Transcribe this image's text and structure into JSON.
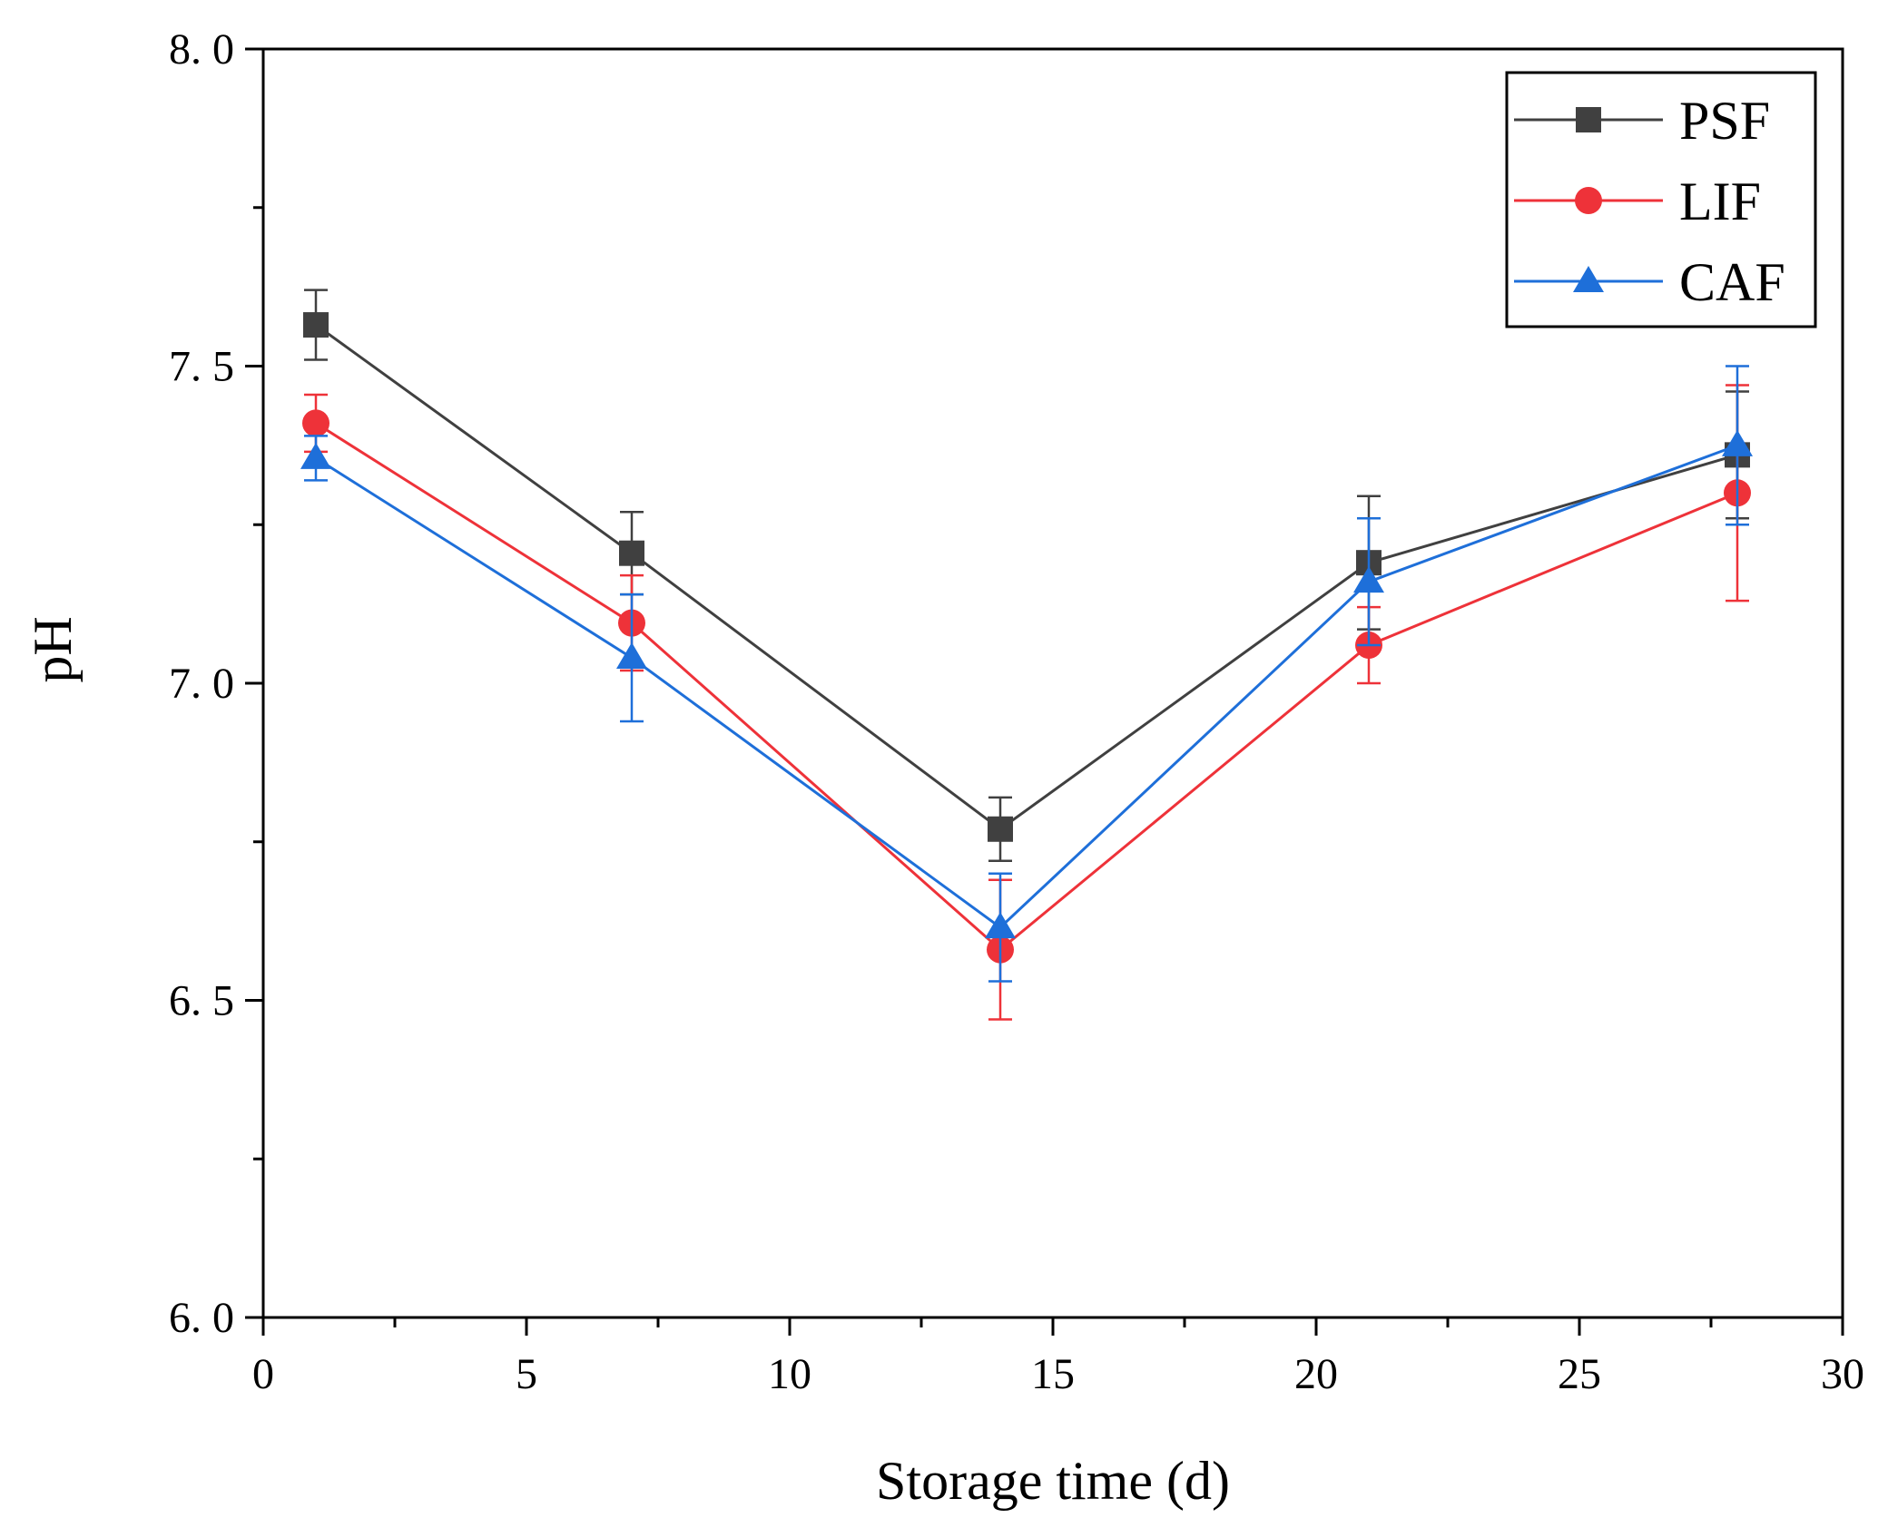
{
  "chart_data": {
    "type": "line",
    "xlabel": "Storage time (d)",
    "ylabel": "pH",
    "xlim": [
      0,
      30
    ],
    "ylim": [
      6.0,
      8.0
    ],
    "x_ticks": [
      0,
      5,
      10,
      15,
      20,
      25,
      30
    ],
    "x_tick_labels": [
      "0",
      "5",
      "10",
      "15",
      "20",
      "25",
      "30"
    ],
    "y_ticks": [
      6.0,
      6.5,
      7.0,
      7.5,
      8.0
    ],
    "y_tick_labels": [
      "6. 0",
      "6. 5",
      "7. 0",
      "7. 5",
      "8. 0"
    ],
    "grid": false,
    "legend_position": "top-right",
    "x": [
      1,
      7,
      14,
      21,
      28
    ],
    "series": [
      {
        "name": "PSF",
        "marker": "square",
        "color": "#404040",
        "values": [
          7.565,
          7.205,
          6.77,
          7.19,
          7.36
        ],
        "errors": [
          0.055,
          0.065,
          0.05,
          0.105,
          0.1
        ]
      },
      {
        "name": "LIF",
        "marker": "circle",
        "color": "#ee3239",
        "values": [
          7.41,
          7.095,
          6.58,
          7.06,
          7.3
        ],
        "errors": [
          0.045,
          0.075,
          0.11,
          0.06,
          0.17
        ]
      },
      {
        "name": "CAF",
        "marker": "triangle",
        "color": "#1e6fd9",
        "values": [
          7.355,
          7.04,
          6.615,
          7.16,
          7.375
        ],
        "errors": [
          0.035,
          0.1,
          0.085,
          0.1,
          0.125
        ]
      }
    ]
  }
}
